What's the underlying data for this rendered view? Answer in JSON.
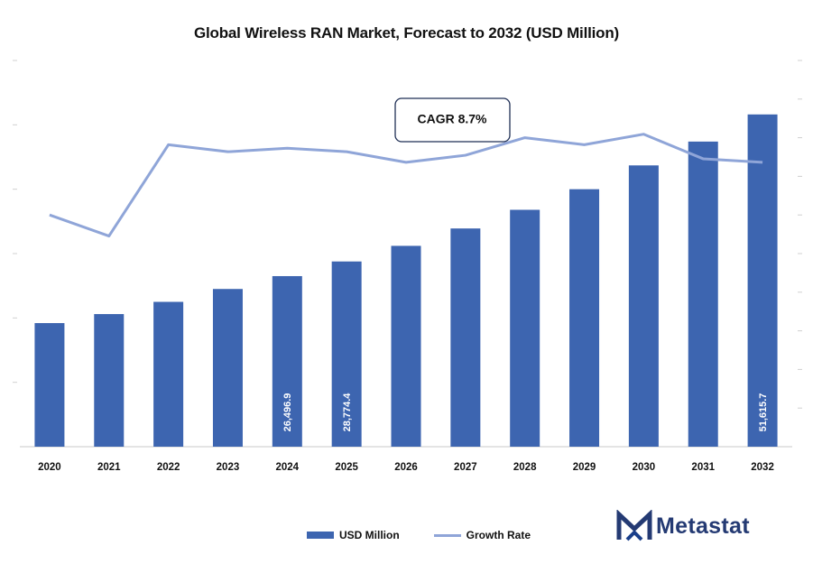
{
  "chart_data": {
    "type": "bar",
    "title": "Global Wireless RAN Market, Forecast to 2032 (USD Million)",
    "categories": [
      "2020",
      "2021",
      "2022",
      "2023",
      "2024",
      "2025",
      "2026",
      "2027",
      "2028",
      "2029",
      "2030",
      "2031",
      "2032"
    ],
    "series": [
      {
        "name": "USD Million",
        "type": "bar",
        "color": "#3d65b0",
        "values": [
          19200,
          20600,
          22500,
          24500,
          26496.9,
          28774.4,
          31200,
          33900,
          36800,
          40000,
          43700,
          47400,
          51615.7
        ],
        "data_labels": [
          "",
          "",
          "",
          "",
          "26,496.9",
          "28,774.4",
          "",
          "",
          "",
          "",
          "",
          "",
          "51,615.7"
        ]
      },
      {
        "name": "Growth Rate",
        "type": "line",
        "color": "#8fa5d8",
        "axis": "secondary",
        "values": [
          6.6,
          6.0,
          8.6,
          8.4,
          8.5,
          8.4,
          8.1,
          8.3,
          8.8,
          8.6,
          8.9,
          8.2,
          8.1
        ]
      }
    ],
    "ylim": [
      0,
      60000
    ],
    "y2lim": [
      0,
      11
    ],
    "xlabel": "",
    "ylabel": "",
    "grid": false,
    "legend_position": "bottom",
    "annotation": "CAGR 8.7%"
  },
  "legend": {
    "items": [
      {
        "label": "USD Million",
        "color": "#3d65b0",
        "kind": "bar"
      },
      {
        "label": "Growth Rate",
        "color": "#8fa5d8",
        "kind": "line"
      }
    ]
  },
  "logo": {
    "text": "Metastat",
    "colors": {
      "primary": "#243a73",
      "accent": "#1a3f8a"
    }
  }
}
